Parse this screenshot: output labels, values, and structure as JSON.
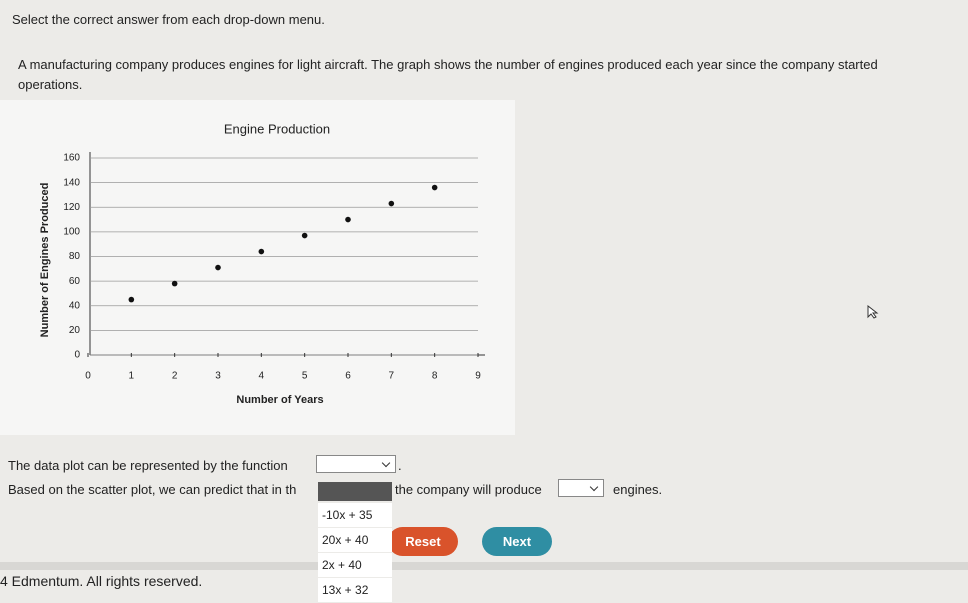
{
  "instructions": "Select the correct answer from each drop-down menu.",
  "problem": "A manufacturing company produces engines for light aircraft. The graph shows the number of engines produced each year since the company started operations.",
  "chart_data": {
    "type": "scatter",
    "title": "Engine Production",
    "x_label": "Number of Years",
    "y_label": "Number of Engines Produced",
    "x": [
      1,
      2,
      3,
      4,
      5,
      6,
      7,
      8
    ],
    "values": [
      45,
      58,
      71,
      84,
      97,
      110,
      123,
      136
    ],
    "color": "#111111",
    "xlim": [
      0,
      9
    ],
    "xticks": [
      0,
      1,
      2,
      3,
      4,
      5,
      6,
      7,
      8,
      9
    ],
    "ylim": [
      0,
      160
    ],
    "yticks": [
      0,
      20,
      40,
      60,
      80,
      100,
      120,
      140,
      160
    ],
    "grid": true
  },
  "sentences": [
    {
      "before": "The data plot can be represented by the function",
      "after": "."
    },
    {
      "before": "Based on the scatter plot, we can predict that in th",
      "middle": "the company will produce",
      "after": "engines."
    }
  ],
  "dropdown_options": [
    "-10x + 35",
    "20x + 40",
    "2x + 40",
    "13x + 32"
  ],
  "buttons": {
    "reset": "Reset",
    "next": "Next"
  },
  "footer": "4 Edmentum. All rights reserved."
}
